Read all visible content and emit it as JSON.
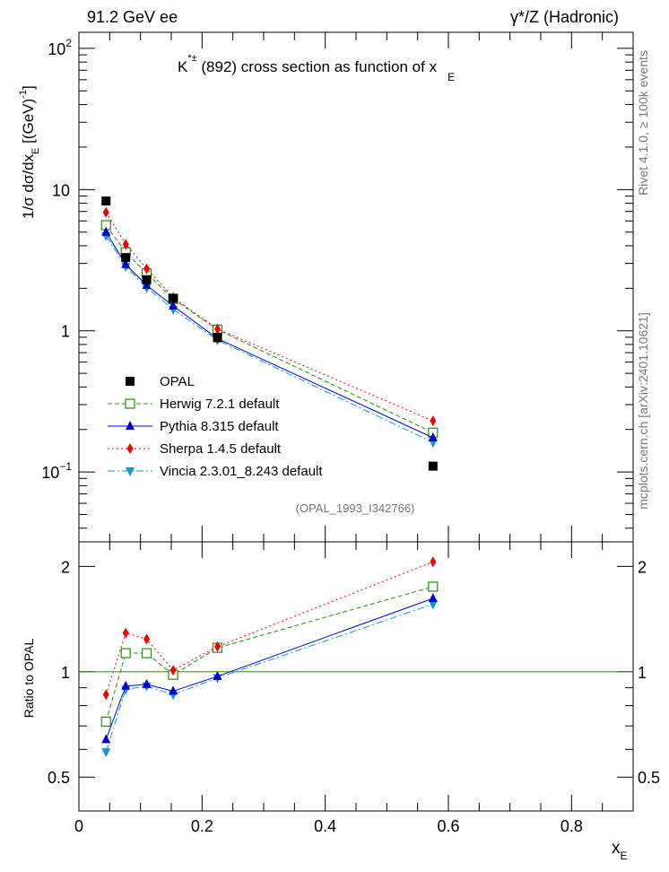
{
  "header": {
    "left": "91.2 GeV ee",
    "right": "γ*/Z (Hadronic)"
  },
  "side_text": {
    "rivet": "Rivet 4.1.0, ≥ 100k events",
    "mcplots": "mcplots.cern.ch [arXiv:2401.10621]"
  },
  "watermark": "(OPAL_1993_I342766)",
  "chart_data": {
    "type": "line",
    "title_main": "K",
    "title_sup": "*±",
    "title_rest": " (892) cross section as function of x",
    "title_sub": "E",
    "ylabel_pre": "1/σ  dσ/dx",
    "ylabel_sub": "E",
    "ylabel_post": " [(GeV)",
    "ylabel_sup": "-1",
    "ylabel_end": "]",
    "ratio_ylabel": "Ratio to OPAL",
    "xlabel": "x",
    "xlabel_sub": "E",
    "xlim": [
      0,
      0.9
    ],
    "ylim": [
      0.032,
      130
    ],
    "ratio_ylim": [
      0.4,
      2.35
    ],
    "x_ticks": [
      "0",
      "0.2",
      "0.4",
      "0.6",
      "0.8"
    ],
    "y_ticks": [
      {
        "base": "10",
        "exp": "2",
        "value": 100
      },
      {
        "base": "10",
        "exp": "",
        "value": 10
      },
      {
        "base": "1",
        "exp": "",
        "value": 1
      },
      {
        "base": "10",
        "exp": "−1",
        "value": 0.1
      }
    ],
    "ratio_ticks": [
      "0.5",
      "1",
      "2"
    ],
    "x": [
      0.044,
      0.076,
      0.11,
      0.153,
      0.225,
      0.575
    ],
    "series": [
      {
        "name": "OPAL",
        "legend": "OPAL",
        "color": "#000000",
        "marker": "square",
        "values": [
          8.3,
          3.3,
          2.3,
          1.7,
          0.9,
          0.11
        ]
      },
      {
        "name": "Herwig",
        "legend": "Herwig 7.2.1 default",
        "color": "#2b8a12",
        "marker": "open-square",
        "dash": "5,3",
        "values": [
          5.6,
          3.6,
          2.55,
          1.68,
          1.02,
          0.19
        ],
        "ratio": [
          0.72,
          1.13,
          1.13,
          0.98,
          1.17,
          1.75
        ]
      },
      {
        "name": "Pythia",
        "legend": "Pythia 8.315 default",
        "color": "#0000cc",
        "marker": "triangle-up",
        "dash": "",
        "values": [
          5.0,
          2.95,
          2.1,
          1.5,
          0.88,
          0.175
        ],
        "ratio": [
          0.64,
          0.91,
          0.92,
          0.88,
          0.97,
          1.62
        ]
      },
      {
        "name": "Sherpa",
        "legend": "Sherpa 1.4.5 default",
        "color": "#ee0000",
        "marker": "diamond",
        "dash": "2,3",
        "values": [
          6.9,
          4.1,
          2.75,
          1.72,
          1.03,
          0.23
        ],
        "ratio": [
          0.86,
          1.29,
          1.24,
          1.01,
          1.18,
          2.06
        ]
      },
      {
        "name": "Vincia",
        "legend": "Vincia 2.3.01_8.243 default",
        "color": "#1199cc",
        "marker": "triangle-down",
        "dash": "8,3,2,3",
        "values": [
          4.7,
          2.85,
          2.02,
          1.42,
          0.86,
          0.162
        ],
        "ratio": [
          0.59,
          0.89,
          0.91,
          0.86,
          0.96,
          1.56
        ]
      }
    ]
  }
}
